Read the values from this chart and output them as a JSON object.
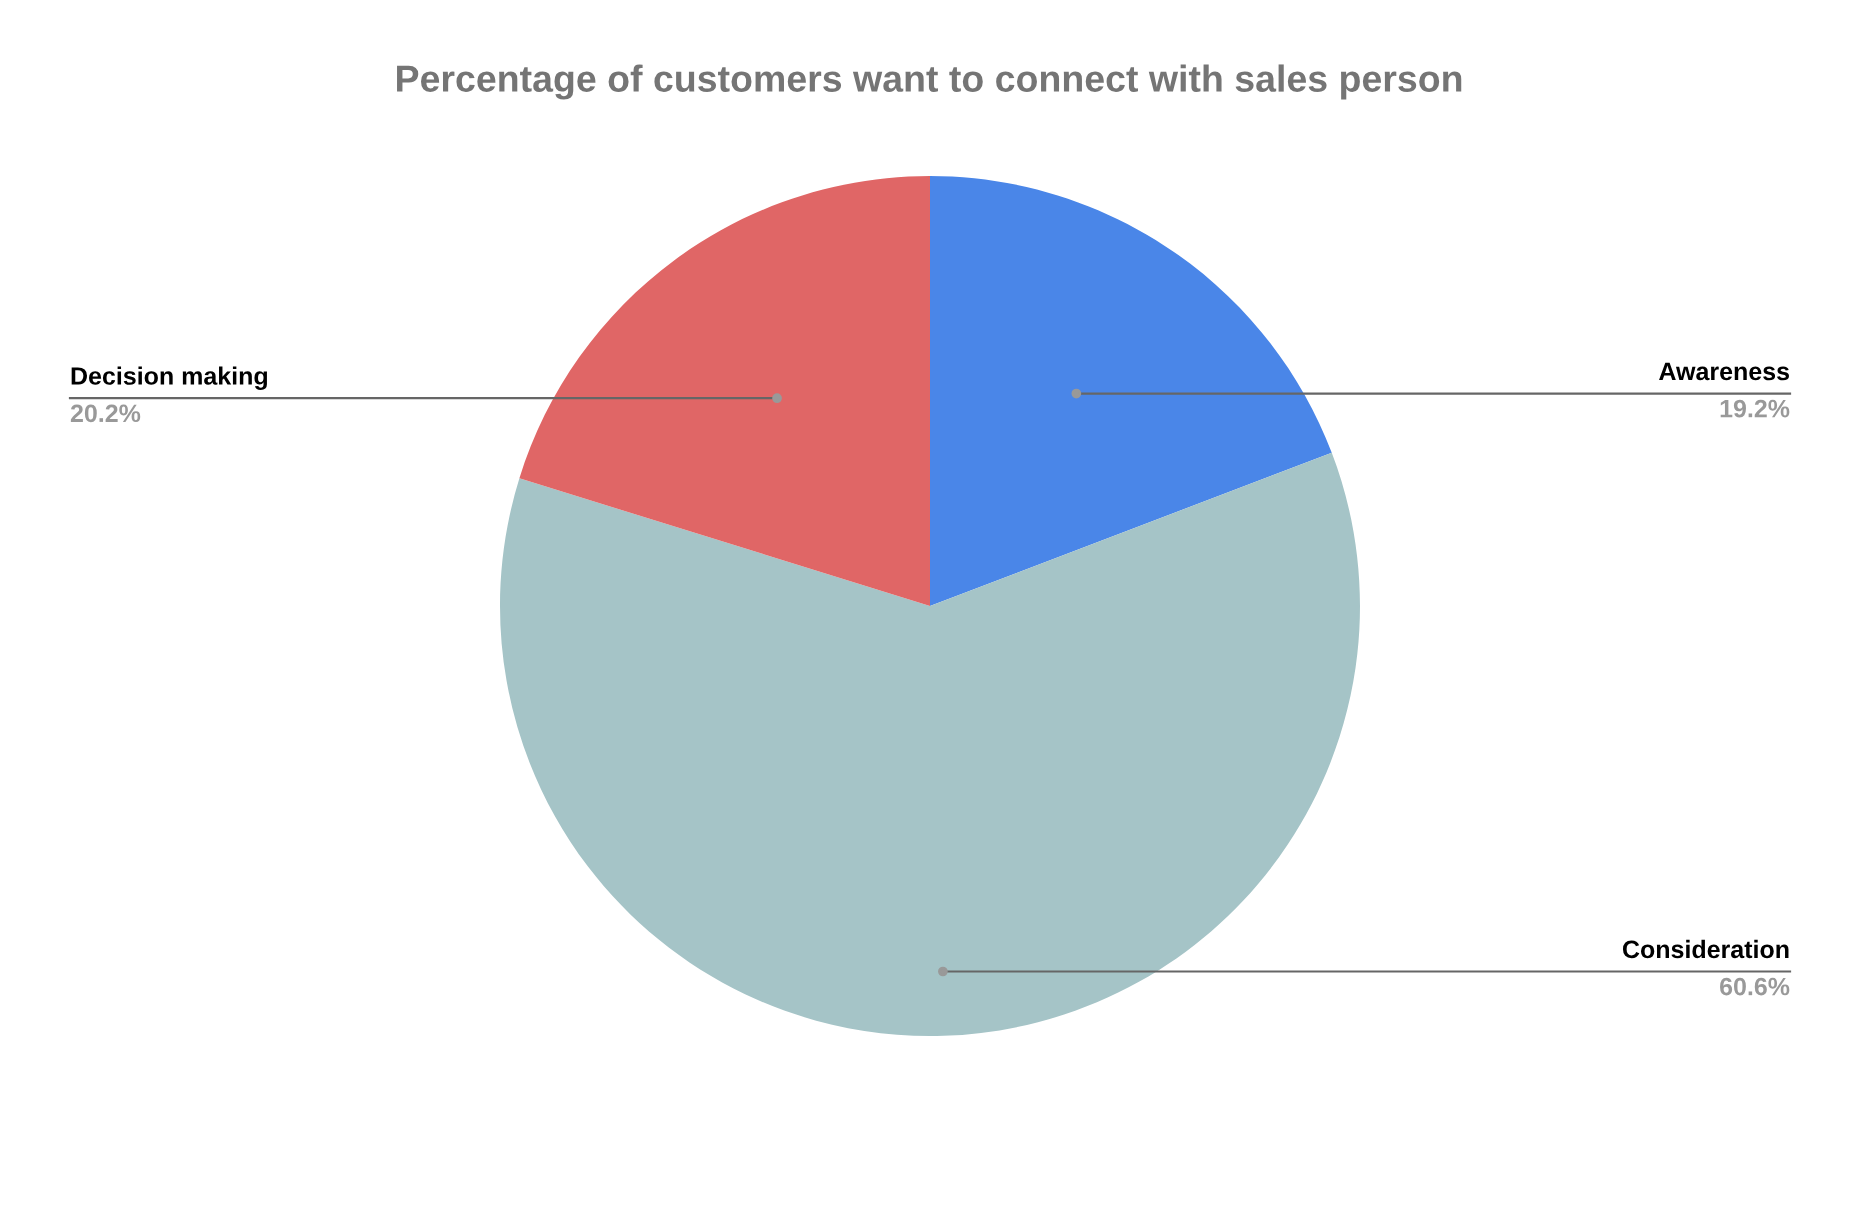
{
  "chart_data": {
    "type": "pie",
    "title": "Percentage of customers want to connect with sales person",
    "categories": [
      "Awareness",
      "Consideration",
      "Decision making"
    ],
    "values": [
      19.2,
      60.6,
      20.2
    ],
    "value_labels": [
      "19.2%",
      "60.6%",
      "20.2%"
    ],
    "colors": [
      "#4a86e8",
      "#a5c4c7",
      "#e06666"
    ],
    "legend": false
  }
}
